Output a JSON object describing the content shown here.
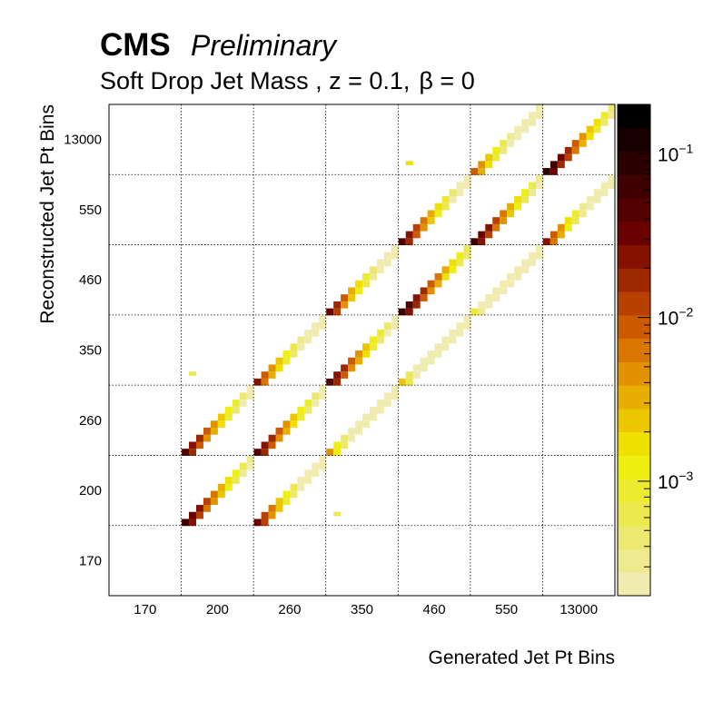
{
  "header": {
    "experiment": "CMS",
    "status": "Preliminary",
    "subtitle_main": "Soft Drop Jet Mass , z = 0.1,",
    "subtitle_beta": "β = 0"
  },
  "chart_data": {
    "type": "heatmap",
    "xlabel": "Generated Jet Pt Bins",
    "ylabel": "Reconstructed Jet Pt Bins",
    "x_bin_labels": [
      "170",
      "200",
      "260",
      "350",
      "460",
      "550",
      "13000"
    ],
    "y_bin_labels": [
      "170",
      "200",
      "260",
      "350",
      "460",
      "550",
      "13000"
    ],
    "grid": true,
    "z_scale": "log",
    "z_range": [
      0.0002,
      0.2
    ],
    "z_tick_labels": [
      {
        "base": "10",
        "exp": "−3",
        "value": 0.001
      },
      {
        "base": "10",
        "exp": "−2",
        "value": 0.01
      },
      {
        "base": "10",
        "exp": "−1",
        "value": 0.1
      }
    ],
    "palette": [
      "#f0ecb0",
      "#eeea90",
      "#ece870",
      "#ebe850",
      "#eceb30",
      "#eeee10",
      "#f0e000",
      "#ecc700",
      "#e7ad00",
      "#e29200",
      "#d97600",
      "#cc5a00",
      "#b84000",
      "#9e2800",
      "#851200",
      "#6a0000",
      "#520000",
      "#3e0000",
      "#2a0000",
      "#180000",
      "#000000"
    ],
    "blocks": [
      {
        "gen": 1,
        "reco": 1,
        "peak": 0.07,
        "slope": 0.55
      },
      {
        "gen": 2,
        "reco": 1,
        "peak": 0.03,
        "slope": 0.45
      },
      {
        "gen": 1,
        "reco": 2,
        "peak": 0.05,
        "slope": 0.55
      },
      {
        "gen": 2,
        "reco": 2,
        "peak": 0.05,
        "slope": 0.55
      },
      {
        "gen": 3,
        "reco": 2,
        "peak": 0.004,
        "slope": 0.35
      },
      {
        "gen": 2,
        "reco": 3,
        "peak": 0.02,
        "slope": 0.5
      },
      {
        "gen": 3,
        "reco": 3,
        "peak": 0.05,
        "slope": 0.55
      },
      {
        "gen": 4,
        "reco": 3,
        "peak": 0.002,
        "slope": 0.3
      },
      {
        "gen": 3,
        "reco": 4,
        "peak": 0.03,
        "slope": 0.5
      },
      {
        "gen": 4,
        "reco": 4,
        "peak": 0.07,
        "slope": 0.6
      },
      {
        "gen": 5,
        "reco": 4,
        "peak": 0.0008,
        "slope": 0.25
      },
      {
        "gen": 4,
        "reco": 5,
        "peak": 0.05,
        "slope": 0.5
      },
      {
        "gen": 5,
        "reco": 5,
        "peak": 0.07,
        "slope": 0.55
      },
      {
        "gen": 6,
        "reco": 5,
        "peak": 0.02,
        "slope": 0.45
      },
      {
        "gen": 5,
        "reco": 6,
        "peak": 0.01,
        "slope": 0.5
      },
      {
        "gen": 6,
        "reco": 6,
        "peak": 0.1,
        "slope": 0.55
      }
    ],
    "isolated_points": [
      {
        "gen": 1,
        "reco": 3,
        "value": 0.0007
      },
      {
        "gen": 3,
        "reco": 1,
        "value": 0.0006
      },
      {
        "gen": 4,
        "reco": 6,
        "value": 0.0015
      }
    ]
  }
}
